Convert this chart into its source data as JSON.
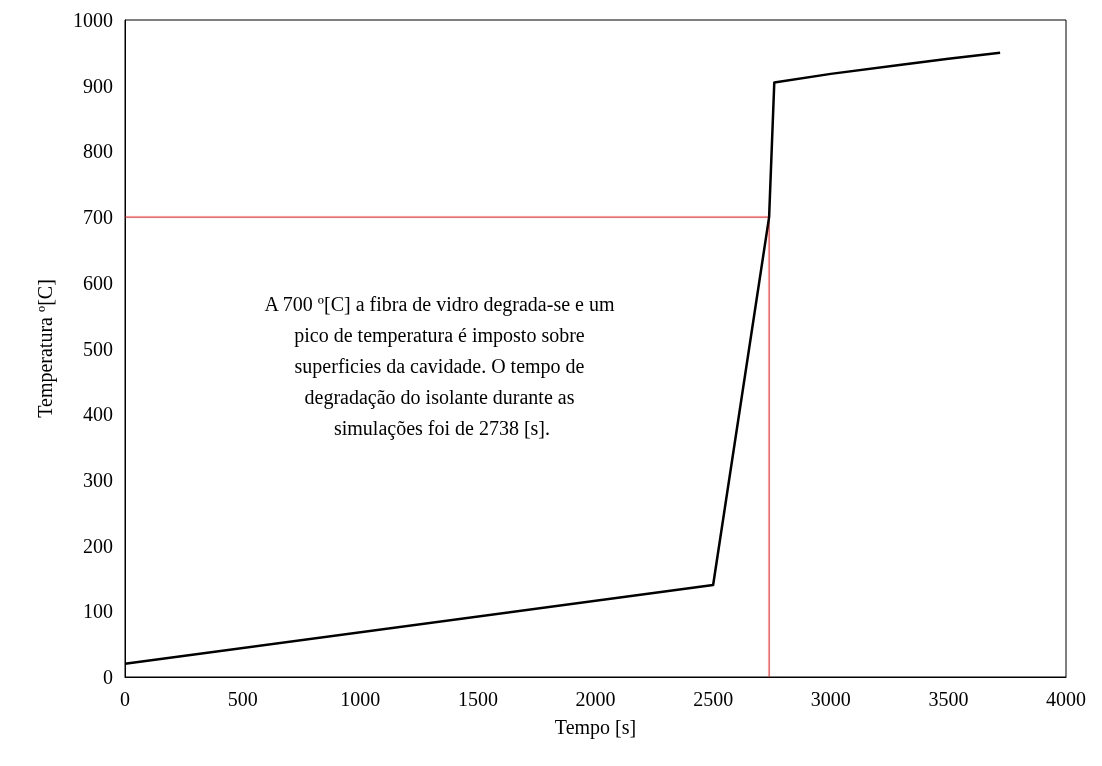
{
  "chart_data": {
    "type": "line",
    "xlabel": "Tempo [s]",
    "ylabel": "Temperatura º[C]",
    "x": [
      0,
      2500,
      2738,
      2760,
      3000,
      3300,
      3500,
      3720
    ],
    "series": [
      {
        "color": "#000000",
        "values": [
          20,
          140,
          700,
          905,
          918,
          932,
          941,
          950
        ]
      }
    ],
    "xlim": [
      0,
      4000
    ],
    "xticks": [
      0,
      500,
      1000,
      1500,
      2000,
      2500,
      3000,
      3500,
      4000
    ],
    "ylim": [
      0,
      1000
    ],
    "yticks": [
      0,
      100,
      200,
      300,
      400,
      500,
      600,
      700,
      800,
      900,
      1000
    ],
    "grid": false,
    "marker": "none",
    "line_style": "solid",
    "ref_lines": [
      {
        "axis": "y",
        "value": 700,
        "color": "#ff0000"
      },
      {
        "axis": "x",
        "value": 2738,
        "color": "#ff0000"
      }
    ],
    "annotations": [
      "A 700 º[C] a fibra de vidro degrada-se e um pico de temperatura é imposto sobre superficies da cavidade. O tempo de degradação do isolante durante as simulações foi de 2738 [s]."
    ]
  }
}
